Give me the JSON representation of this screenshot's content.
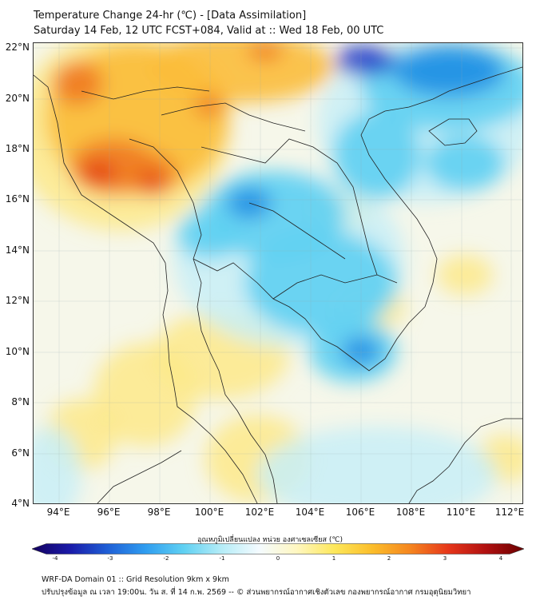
{
  "title": {
    "line1": "Temperature Change 24-hr (℃) - [Data Assimilation]",
    "line2": "Saturday 14 Feb, 12 UTC FCST+084, Valid at :: Wed 18 Feb, 00 UTC"
  },
  "map": {
    "lat_labels": [
      "22°N",
      "20°N",
      "18°N",
      "16°N",
      "14°N",
      "12°N",
      "10°N",
      "8°N",
      "6°N",
      "4°N"
    ],
    "lon_labels": [
      "94°E",
      "96°E",
      "98°E",
      "100°E",
      "102°E",
      "104°E",
      "106°E",
      "108°E",
      "110°E",
      "112°E"
    ],
    "colors": {
      "ocean_neutral": "#f6f7ea",
      "land_neutral": "#f3f2d8",
      "warm_light": "#fde98a",
      "warm": "#fbbd3a",
      "hot": "#f07a22",
      "hottest": "#e23a17",
      "cool_light": "#c8eef7",
      "cool": "#5fd0f2",
      "cold": "#1f8ee3",
      "coldest": "#1632c8",
      "border": "#222222"
    }
  },
  "colorbar": {
    "title": "อุณหภูมิเปลี่ยนแปลง หน่วย องศาเซลเซียส (℃)",
    "ticks": [
      "-4",
      "-3",
      "-2",
      "-1",
      "0",
      "1",
      "2",
      "3",
      "4"
    ],
    "range": [
      -4,
      4
    ],
    "colors": [
      "#14005f",
      "#1a1aa8",
      "#1f5fd6",
      "#2f9df0",
      "#5fd0f2",
      "#b4ecf7",
      "#f4fbff",
      "#fff7c0",
      "#fde75a",
      "#fbbd2a",
      "#f5851f",
      "#e6361a",
      "#b01010",
      "#6a0000"
    ]
  },
  "footer": {
    "line1": "WRF-DA Domain 01 :: Grid Resolution 9km x 9km",
    "line2": "ปรับปรุงข้อมูล ณ เวลา 19:00น. วัน ส. ที่ 14 ก.พ. 2569 -- © ส่วนพยากรณ์อากาศเชิงตัวเลข กองพยากรณ์อากาศ กรมอุตุนิยมวิทยา"
  }
}
